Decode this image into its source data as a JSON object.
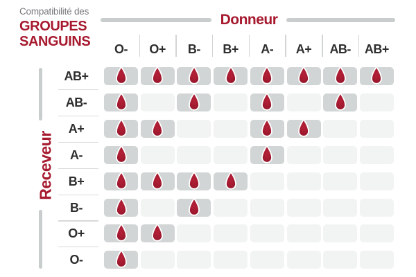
{
  "title": {
    "kicker": "Compatibilité des",
    "line1": "GROUPES",
    "line2": "SANGUINS"
  },
  "axes": {
    "donor": "Donneur",
    "receiver": "Receveur"
  },
  "icons": {
    "compatible": "blood-drop-icon"
  },
  "colors": {
    "accent_red": "#A6192E",
    "drop_red_light": "#B52038",
    "drop_red": "#A51B31",
    "drop_red_dark": "#8F1227",
    "cell_filled": "#D2D5D5",
    "cell_empty": "#F2F3F3",
    "divider_gray": "#C9CDCE",
    "label_dark": "#2E2E2E",
    "kicker_gray": "#77787B"
  },
  "chart_data": {
    "type": "heatmap",
    "title": "Compatibilité des GROUPES SANGUINS",
    "x_axis_label": "Donneur",
    "y_axis_label": "Receveur",
    "donors": [
      "O-",
      "O+",
      "B-",
      "B+",
      "A-",
      "A+",
      "AB-",
      "AB+"
    ],
    "receivers": [
      "AB+",
      "AB-",
      "A+",
      "A-",
      "B+",
      "B-",
      "O+",
      "O-"
    ],
    "legend": "cell with blood drop = compatible, plain cell = incompatible",
    "compatibility": [
      [
        1,
        1,
        1,
        1,
        1,
        1,
        1,
        1
      ],
      [
        1,
        0,
        1,
        0,
        1,
        0,
        1,
        0
      ],
      [
        1,
        1,
        0,
        0,
        1,
        1,
        0,
        0
      ],
      [
        1,
        0,
        0,
        0,
        1,
        0,
        0,
        0
      ],
      [
        1,
        1,
        1,
        1,
        0,
        0,
        0,
        0
      ],
      [
        1,
        0,
        1,
        0,
        0,
        0,
        0,
        0
      ],
      [
        1,
        1,
        0,
        0,
        0,
        0,
        0,
        0
      ],
      [
        1,
        0,
        0,
        0,
        0,
        0,
        0,
        0
      ]
    ]
  }
}
